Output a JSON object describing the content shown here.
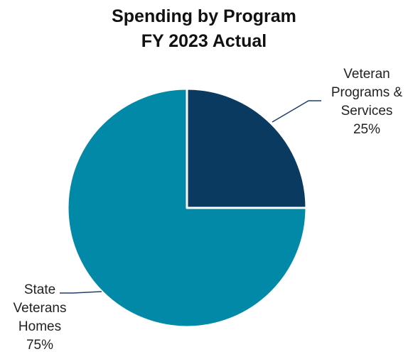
{
  "chart_data": {
    "type": "pie",
    "title_lines": [
      "Spending by Program",
      "FY 2023 Actual"
    ],
    "slices": [
      {
        "label_lines": [
          "Veteran",
          "Programs &",
          "Services"
        ],
        "value_label": "25%",
        "value": 25,
        "color": "#0b3a60"
      },
      {
        "label_lines": [
          "State",
          "Veterans",
          "Homes"
        ],
        "value_label": "75%",
        "value": 75,
        "color": "#0289a8"
      }
    ],
    "leader_color": "#1f3f66",
    "border_color": "#ffffff"
  }
}
